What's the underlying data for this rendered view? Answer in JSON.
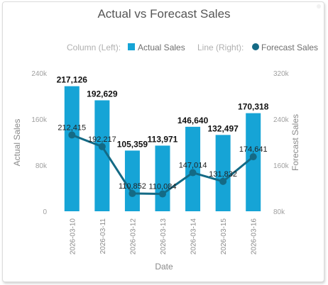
{
  "chart_data": {
    "type": "bar+line",
    "title": "Actual vs Forecast Sales",
    "xlabel": "Date",
    "ylabel_left": "Actual Sales",
    "ylabel_right": "Forecast Sales",
    "legend": {
      "position": "top-right",
      "column_group": "Column (Left):",
      "line_group": "Line (Right):"
    },
    "categories": [
      "2026-03-10",
      "2026-03-11",
      "2026-03-12",
      "2026-03-13",
      "2026-03-14",
      "2026-03-15",
      "2026-03-16"
    ],
    "left_axis": {
      "range": [
        0,
        240000
      ],
      "ticks": [
        0,
        80000,
        160000,
        240000
      ],
      "tick_labels": [
        "0",
        "80k",
        "160k",
        "240k"
      ]
    },
    "right_axis": {
      "range": [
        80000,
        320000
      ],
      "ticks": [
        80000,
        160000,
        240000,
        320000
      ],
      "tick_labels": [
        "80k",
        "160k",
        "240k",
        "320k"
      ]
    },
    "series": [
      {
        "name": "Actual Sales",
        "kind": "column",
        "axis": "left",
        "color": "#16a4d6",
        "values": [
          217126,
          192629,
          105359,
          113971,
          146640,
          132497,
          170318
        ],
        "labels": [
          "217,126",
          "192,629",
          "105,359",
          "113,971",
          "146,640",
          "132,497",
          "170,318"
        ]
      },
      {
        "name": "Forecast Sales",
        "kind": "line",
        "axis": "right",
        "color": "#146a85",
        "values": [
          212415,
          192217,
          110852,
          110084,
          147014,
          131832,
          174641
        ],
        "labels": [
          "212,415",
          "192,217",
          "110,852",
          "110,084",
          "147,014",
          "131,832",
          "174,641"
        ]
      }
    ],
    "grid": false
  }
}
